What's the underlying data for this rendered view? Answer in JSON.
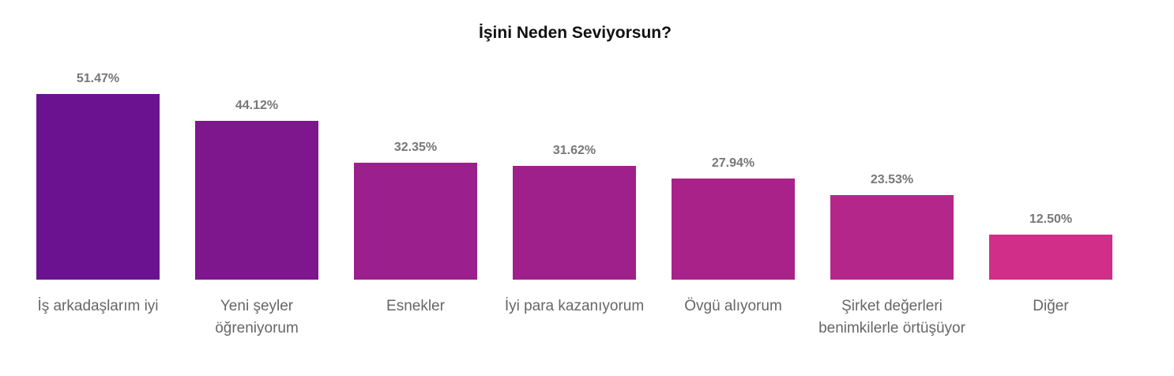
{
  "chart_data": {
    "type": "bar",
    "title": "İşini Neden Seviyorsun?",
    "categories": [
      "İş arkadaşlarım iyi",
      "Yeni şeyler öğreniyorum",
      "Esnekler",
      "İyi para kazanıyorum",
      "Övgü alıyorum",
      "Şirket değerleri benimkilerle örtüşüyor",
      "Diğer"
    ],
    "values": [
      51.47,
      44.12,
      32.35,
      31.62,
      27.94,
      23.53,
      12.5
    ],
    "value_labels": [
      "51.47%",
      "44.12%",
      "32.35%",
      "31.62%",
      "27.94%",
      "23.53%",
      "12.50%"
    ],
    "colors": [
      "#6a1290",
      "#7e168e",
      "#9b1f8c",
      "#a0208b",
      "#a8228a",
      "#b5268a",
      "#d12e89"
    ]
  }
}
